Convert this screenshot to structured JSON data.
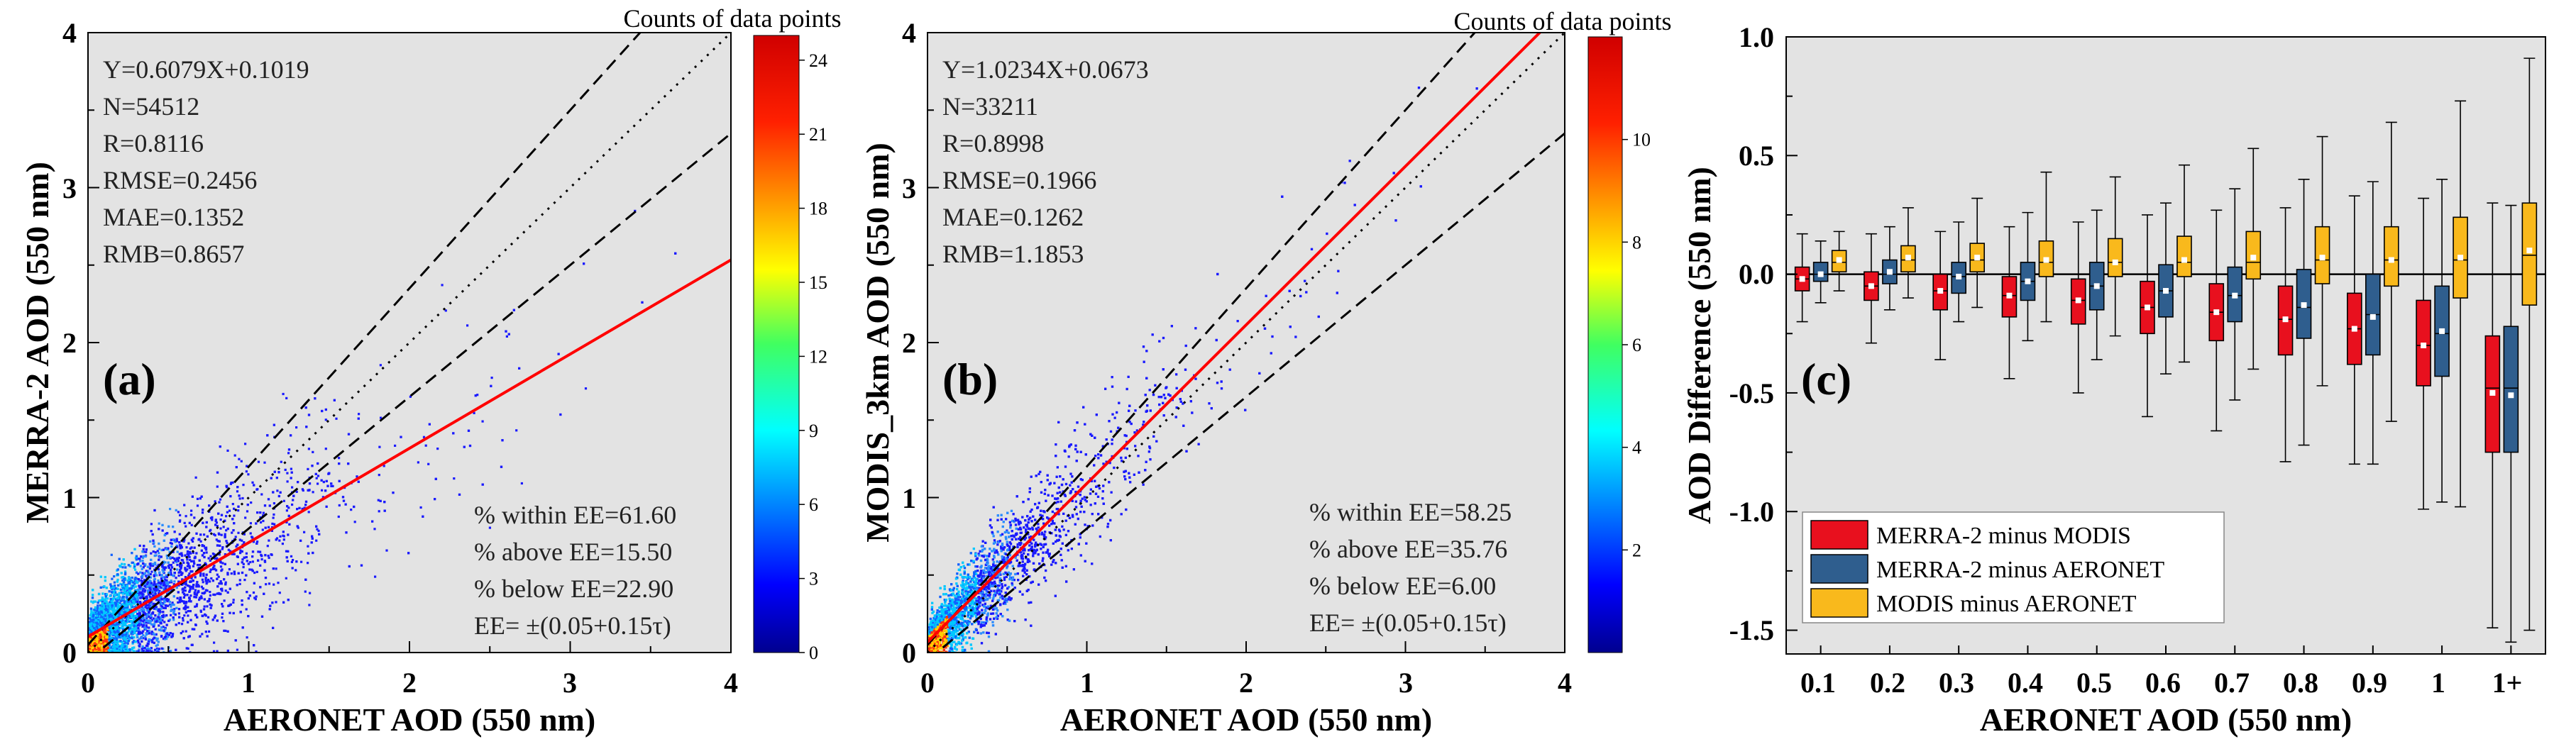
{
  "chart_data": [
    {
      "type": "scatter",
      "panel_label": "(a)",
      "xlabel": "AERONET AOD (550 nm)",
      "ylabel": "MERRA-2 AOD (550 nm)",
      "xlim": [
        0,
        4
      ],
      "ylim": [
        0,
        4
      ],
      "x_ticks": [
        "0",
        "1",
        "2",
        "3",
        "4"
      ],
      "y_ticks": [
        "0",
        "1",
        "2",
        "3",
        "4"
      ],
      "fit": {
        "slope": 0.6079,
        "intercept": 0.1019
      },
      "stats": [
        "Y=0.6079X+0.1019",
        "N=54512",
        "R=0.8116",
        "RMSE=0.2456",
        "MAE=0.1352",
        "RMB=0.8657"
      ],
      "ee_stats": [
        "% within EE=61.60",
        "% above  EE=15.50",
        "% below  EE=22.90",
        "EE= ±(0.05+0.15τ)"
      ],
      "colorbar": {
        "title": "Counts of data points",
        "ticks": [
          "0",
          "3",
          "6",
          "9",
          "12",
          "15",
          "18",
          "21",
          "24"
        ],
        "range": [
          0,
          25
        ]
      },
      "colors": {
        "points": "#1a1aff",
        "fit_line": "#ff0000"
      }
    },
    {
      "type": "scatter",
      "panel_label": "(b)",
      "xlabel": "AERONET AOD (550 nm)",
      "ylabel": "MODIS_3km AOD (550 nm)",
      "xlim": [
        0,
        4
      ],
      "ylim": [
        0,
        4
      ],
      "x_ticks": [
        "0",
        "1",
        "2",
        "3",
        "4"
      ],
      "y_ticks": [
        "0",
        "1",
        "2",
        "3",
        "4"
      ],
      "fit": {
        "slope": 1.0234,
        "intercept": 0.0673
      },
      "stats": [
        "Y=1.0234X+0.0673",
        "N=33211",
        "R=0.8998",
        "RMSE=0.1966",
        "MAE=0.1262",
        "RMB=1.1853"
      ],
      "ee_stats": [
        "% within EE=58.25",
        "% above  EE=35.76",
        "% below  EE=6.00",
        "EE= ±(0.05+0.15τ)"
      ],
      "colorbar": {
        "title": "Counts of data points",
        "ticks": [
          "2",
          "4",
          "6",
          "8",
          "10"
        ],
        "range": [
          0,
          12
        ]
      },
      "colors": {
        "points": "#1a1aff",
        "fit_line": "#ff0000"
      }
    },
    {
      "type": "box",
      "panel_label": "(c)",
      "xlabel": "AERONET AOD (550 nm)",
      "ylabel": "AOD Difference (550 nm)",
      "ylim": [
        -1.6,
        1.0
      ],
      "y_ticks": [
        1.0,
        0.5,
        0.0,
        -0.5,
        -1.0,
        -1.5
      ],
      "y_tick_labels": [
        "1.0",
        "0.5",
        "0.0",
        "-0.5",
        "-1.0",
        "-1.5"
      ],
      "categories": [
        "0.1",
        "0.2",
        "0.3",
        "0.4",
        "0.5",
        "0.6",
        "0.7",
        "0.8",
        "0.9",
        "1",
        "1+"
      ],
      "legend": [
        "MERRA-2 minus MODIS",
        "MERRA-2 minus AERONET",
        "MODIS minus AERONET"
      ],
      "series": [
        {
          "name": "MERRA-2 minus MODIS",
          "color": "#e8101e",
          "boxes": [
            {
              "wlo": -0.2,
              "q1": -0.07,
              "med": -0.02,
              "q3": 0.03,
              "whi": 0.17,
              "mean": -0.02
            },
            {
              "wlo": -0.29,
              "q1": -0.11,
              "med": -0.05,
              "q3": 0.01,
              "whi": 0.17,
              "mean": -0.05
            },
            {
              "wlo": -0.36,
              "q1": -0.15,
              "med": -0.07,
              "q3": 0.0,
              "whi": 0.18,
              "mean": -0.07
            },
            {
              "wlo": -0.44,
              "q1": -0.18,
              "med": -0.09,
              "q3": -0.01,
              "whi": 0.2,
              "mean": -0.09
            },
            {
              "wlo": -0.5,
              "q1": -0.21,
              "med": -0.11,
              "q3": -0.02,
              "whi": 0.22,
              "mean": -0.11
            },
            {
              "wlo": -0.6,
              "q1": -0.25,
              "med": -0.14,
              "q3": -0.03,
              "whi": 0.25,
              "mean": -0.14
            },
            {
              "wlo": -0.66,
              "q1": -0.28,
              "med": -0.16,
              "q3": -0.04,
              "whi": 0.27,
              "mean": -0.16
            },
            {
              "wlo": -0.79,
              "q1": -0.34,
              "med": -0.19,
              "q3": -0.05,
              "whi": 0.28,
              "mean": -0.19
            },
            {
              "wlo": -0.8,
              "q1": -0.38,
              "med": -0.23,
              "q3": -0.08,
              "whi": 0.33,
              "mean": -0.23
            },
            {
              "wlo": -0.99,
              "q1": -0.47,
              "med": -0.3,
              "q3": -0.11,
              "whi": 0.32,
              "mean": -0.3
            },
            {
              "wlo": -1.49,
              "q1": -0.75,
              "med": -0.48,
              "q3": -0.26,
              "whi": 0.3,
              "mean": -0.5
            }
          ]
        },
        {
          "name": "MERRA-2 minus AERONET",
          "color": "#2f5e8e",
          "boxes": [
            {
              "wlo": -0.12,
              "q1": -0.03,
              "med": 0.0,
              "q3": 0.05,
              "whi": 0.14,
              "mean": 0.0
            },
            {
              "wlo": -0.15,
              "q1": -0.04,
              "med": 0.0,
              "q3": 0.06,
              "whi": 0.2,
              "mean": 0.01
            },
            {
              "wlo": -0.2,
              "q1": -0.08,
              "med": -0.01,
              "q3": 0.05,
              "whi": 0.22,
              "mean": -0.01
            },
            {
              "wlo": -0.28,
              "q1": -0.11,
              "med": -0.03,
              "q3": 0.05,
              "whi": 0.26,
              "mean": -0.03
            },
            {
              "wlo": -0.36,
              "q1": -0.15,
              "med": -0.05,
              "q3": 0.05,
              "whi": 0.27,
              "mean": -0.05
            },
            {
              "wlo": -0.42,
              "q1": -0.18,
              "med": -0.07,
              "q3": 0.04,
              "whi": 0.3,
              "mean": -0.07
            },
            {
              "wlo": -0.53,
              "q1": -0.2,
              "med": -0.09,
              "q3": 0.03,
              "whi": 0.36,
              "mean": -0.09
            },
            {
              "wlo": -0.72,
              "q1": -0.27,
              "med": -0.14,
              "q3": 0.02,
              "whi": 0.4,
              "mean": -0.13
            },
            {
              "wlo": -0.8,
              "q1": -0.34,
              "med": -0.17,
              "q3": 0.0,
              "whi": 0.39,
              "mean": -0.18
            },
            {
              "wlo": -0.96,
              "q1": -0.43,
              "med": -0.25,
              "q3": -0.05,
              "whi": 0.4,
              "mean": -0.24
            },
            {
              "wlo": -1.55,
              "q1": -0.75,
              "med": -0.48,
              "q3": -0.22,
              "whi": 0.29,
              "mean": -0.51
            }
          ]
        },
        {
          "name": "MODIS minus AERONET",
          "color": "#f9b91c",
          "boxes": [
            {
              "wlo": -0.07,
              "q1": 0.01,
              "med": 0.05,
              "q3": 0.1,
              "whi": 0.18,
              "mean": 0.06
            },
            {
              "wlo": -0.1,
              "q1": 0.01,
              "med": 0.06,
              "q3": 0.12,
              "whi": 0.28,
              "mean": 0.07
            },
            {
              "wlo": -0.14,
              "q1": 0.01,
              "med": 0.06,
              "q3": 0.13,
              "whi": 0.32,
              "mean": 0.07
            },
            {
              "wlo": -0.2,
              "q1": -0.01,
              "med": 0.05,
              "q3": 0.14,
              "whi": 0.43,
              "mean": 0.06
            },
            {
              "wlo": -0.26,
              "q1": -0.01,
              "med": 0.05,
              "q3": 0.15,
              "whi": 0.41,
              "mean": 0.05
            },
            {
              "wlo": -0.37,
              "q1": -0.01,
              "med": 0.05,
              "q3": 0.16,
              "whi": 0.46,
              "mean": 0.06
            },
            {
              "wlo": -0.4,
              "q1": -0.02,
              "med": 0.05,
              "q3": 0.18,
              "whi": 0.53,
              "mean": 0.07
            },
            {
              "wlo": -0.47,
              "q1": -0.04,
              "med": 0.06,
              "q3": 0.2,
              "whi": 0.58,
              "mean": 0.07
            },
            {
              "wlo": -0.62,
              "q1": -0.05,
              "med": 0.06,
              "q3": 0.2,
              "whi": 0.64,
              "mean": 0.06
            },
            {
              "wlo": -0.98,
              "q1": -0.1,
              "med": 0.06,
              "q3": 0.24,
              "whi": 0.73,
              "mean": 0.07
            },
            {
              "wlo": -1.5,
              "q1": -0.13,
              "med": 0.08,
              "q3": 0.3,
              "whi": 0.91,
              "mean": 0.1
            }
          ]
        }
      ]
    }
  ]
}
